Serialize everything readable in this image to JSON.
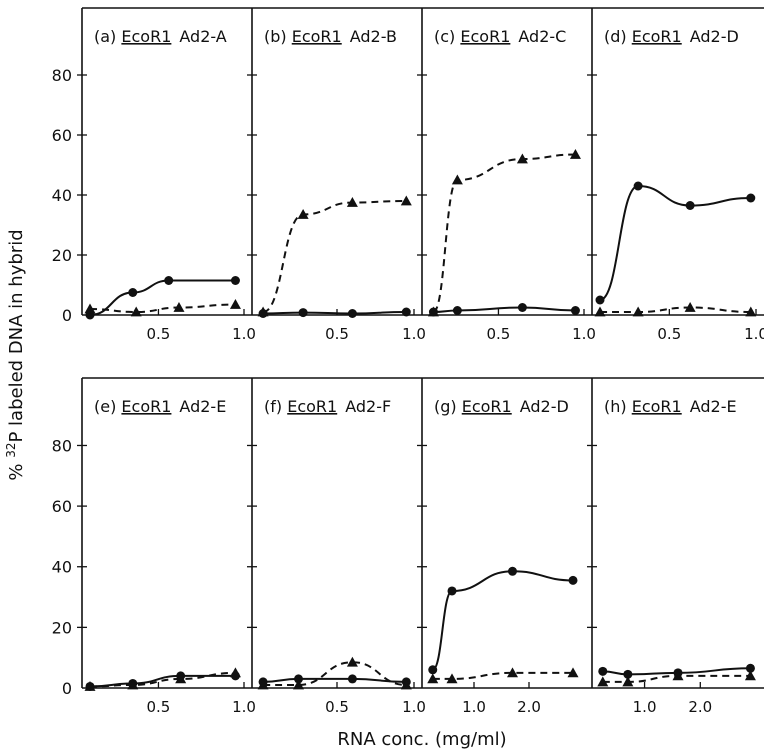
{
  "figure": {
    "ylabel_prefix": "% ",
    "ylabel_sup": "32",
    "ylabel_rest": "P labeled DNA in hybrid",
    "xlabel": "RNA conc. (mg/ml)"
  },
  "chart_data": [
    {
      "type": "line",
      "panel": "a",
      "label_prefix": "(a)",
      "enzyme": "EcoR1",
      "fragment": "Ad2-A",
      "xlim": [
        0.1,
        1.0
      ],
      "ylim": [
        0,
        95
      ],
      "xticks": [
        {
          "v": 0.5,
          "l": "0.5"
        },
        {
          "v": 1.0,
          "l": "1.0"
        }
      ],
      "yticks": [
        {
          "v": 0,
          "l": "0"
        },
        {
          "v": 20,
          "l": "20"
        },
        {
          "v": 40,
          "l": "40"
        },
        {
          "v": 60,
          "l": "60"
        },
        {
          "v": 80,
          "l": "80"
        }
      ],
      "series": [
        {
          "marker": "circle",
          "line": "solid",
          "points": [
            [
              0.1,
              0
            ],
            [
              0.35,
              7.5
            ],
            [
              0.56,
              11.5
            ],
            [
              0.95,
              11.5
            ]
          ]
        },
        {
          "marker": "triangle",
          "line": "dashed",
          "points": [
            [
              0.1,
              2
            ],
            [
              0.37,
              1
            ],
            [
              0.62,
              2.5
            ],
            [
              0.95,
              3.5
            ]
          ]
        }
      ]
    },
    {
      "type": "line",
      "panel": "b",
      "label_prefix": "(b)",
      "enzyme": "EcoR1",
      "fragment": "Ad2-B",
      "xlim": [
        0.0,
        1.0
      ],
      "ylim": [
        0,
        95
      ],
      "xticks": [
        {
          "v": 0.5,
          "l": "0.5"
        },
        {
          "v": 1.0,
          "l": "1.0"
        }
      ],
      "yticks": [],
      "series": [
        {
          "marker": "triangle",
          "line": "dashed",
          "points": [
            [
              0.02,
              1
            ],
            [
              0.28,
              33.5
            ],
            [
              0.6,
              37.5
            ],
            [
              0.95,
              38
            ]
          ]
        },
        {
          "marker": "circle",
          "line": "solid",
          "points": [
            [
              0.02,
              0.5
            ],
            [
              0.28,
              0.8
            ],
            [
              0.6,
              0.5
            ],
            [
              0.95,
              1
            ]
          ]
        }
      ]
    },
    {
      "type": "line",
      "panel": "c",
      "label_prefix": "(c)",
      "enzyme": "EcoR1",
      "fragment": "Ad2-C",
      "xlim": [
        0.1,
        1.0
      ],
      "ylim": [
        0,
        95
      ],
      "xticks": [
        {
          "v": 0.5,
          "l": "0.5"
        },
        {
          "v": 1.0,
          "l": "1.0"
        }
      ],
      "yticks": [],
      "series": [
        {
          "marker": "triangle",
          "line": "dashed",
          "points": [
            [
              0.12,
              1
            ],
            [
              0.26,
              45
            ],
            [
              0.64,
              52
            ],
            [
              0.95,
              53.5
            ]
          ]
        },
        {
          "marker": "circle",
          "line": "solid",
          "points": [
            [
              0.12,
              1
            ],
            [
              0.26,
              1.5
            ],
            [
              0.64,
              2.5
            ],
            [
              0.95,
              1.5
            ]
          ]
        }
      ]
    },
    {
      "type": "line",
      "panel": "d",
      "label_prefix": "(d)",
      "enzyme": "EcoR1",
      "fragment": "Ad2-D",
      "xlim": [
        0.1,
        1.0
      ],
      "ylim": [
        0,
        95
      ],
      "xticks": [
        {
          "v": 0.5,
          "l": "0.5"
        },
        {
          "v": 1.0,
          "l": "1.0"
        }
      ],
      "yticks": [],
      "series": [
        {
          "marker": "circle",
          "line": "solid",
          "points": [
            [
              0.1,
              5
            ],
            [
              0.32,
              43
            ],
            [
              0.62,
              36.5
            ],
            [
              0.97,
              39
            ]
          ]
        },
        {
          "marker": "triangle",
          "line": "dashed",
          "points": [
            [
              0.1,
              1
            ],
            [
              0.32,
              1
            ],
            [
              0.62,
              2.5
            ],
            [
              0.97,
              1
            ]
          ]
        }
      ]
    },
    {
      "type": "line",
      "panel": "e",
      "label_prefix": "(e)",
      "enzyme": "EcoR1",
      "fragment": "Ad2-E",
      "xlim": [
        0.1,
        1.0
      ],
      "ylim": [
        0,
        95
      ],
      "xticks": [
        {
          "v": 0.5,
          "l": "0.5"
        },
        {
          "v": 1.0,
          "l": "1.0"
        }
      ],
      "yticks": [
        {
          "v": 0,
          "l": "0"
        },
        {
          "v": 20,
          "l": "20"
        },
        {
          "v": 40,
          "l": "40"
        },
        {
          "v": 60,
          "l": "60"
        },
        {
          "v": 80,
          "l": "80"
        }
      ],
      "series": [
        {
          "marker": "circle",
          "line": "solid",
          "points": [
            [
              0.1,
              0.5
            ],
            [
              0.35,
              1.5
            ],
            [
              0.63,
              4
            ],
            [
              0.95,
              4
            ]
          ]
        },
        {
          "marker": "triangle",
          "line": "dashed",
          "points": [
            [
              0.1,
              0.5
            ],
            [
              0.35,
              1
            ],
            [
              0.63,
              3
            ],
            [
              0.95,
              5
            ]
          ]
        }
      ]
    },
    {
      "type": "line",
      "panel": "f",
      "label_prefix": "(f)",
      "enzyme": "EcoR1",
      "fragment": "Ad2-F",
      "xlim": [
        0.0,
        1.0
      ],
      "ylim": [
        0,
        95
      ],
      "xticks": [
        {
          "v": 0.5,
          "l": "0.5"
        },
        {
          "v": 1.0,
          "l": "1.0"
        }
      ],
      "yticks": [],
      "series": [
        {
          "marker": "circle",
          "line": "solid",
          "points": [
            [
              0.02,
              2
            ],
            [
              0.25,
              3
            ],
            [
              0.6,
              3
            ],
            [
              0.95,
              2
            ]
          ]
        },
        {
          "marker": "triangle",
          "line": "dashed",
          "points": [
            [
              0.02,
              1
            ],
            [
              0.25,
              1
            ],
            [
              0.6,
              8.5
            ],
            [
              0.95,
              1
            ]
          ]
        }
      ]
    },
    {
      "type": "line",
      "panel": "g",
      "label_prefix": "(g)",
      "enzyme": "EcoR1",
      "fragment": "Ad2-D",
      "xlim": [
        0.2,
        3.0
      ],
      "ylim": [
        0,
        95
      ],
      "xticks": [
        {
          "v": 1.0,
          "l": "1.0"
        },
        {
          "v": 2.0,
          "l": "2.0"
        }
      ],
      "yticks": [],
      "series": [
        {
          "marker": "circle",
          "line": "solid",
          "points": [
            [
              0.25,
              6
            ],
            [
              0.6,
              32
            ],
            [
              1.7,
              38.5
            ],
            [
              2.8,
              35.5
            ]
          ]
        },
        {
          "marker": "triangle",
          "line": "dashed",
          "points": [
            [
              0.25,
              3
            ],
            [
              0.6,
              3
            ],
            [
              1.7,
              5
            ],
            [
              2.8,
              5
            ]
          ]
        }
      ]
    },
    {
      "type": "line",
      "panel": "h",
      "label_prefix": "(h)",
      "enzyme": "EcoR1",
      "fragment": "Ad2-E",
      "xlim": [
        0.2,
        3.0
      ],
      "ylim": [
        0,
        95
      ],
      "xticks": [
        {
          "v": 1.0,
          "l": "1.0"
        },
        {
          "v": 2.0,
          "l": "2.0"
        }
      ],
      "yticks": [],
      "series": [
        {
          "marker": "circle",
          "line": "solid",
          "points": [
            [
              0.25,
              5.5
            ],
            [
              0.7,
              4.5
            ],
            [
              1.6,
              5
            ],
            [
              2.9,
              6.5
            ]
          ]
        },
        {
          "marker": "triangle",
          "line": "dashed",
          "points": [
            [
              0.25,
              2
            ],
            [
              0.7,
              2
            ],
            [
              1.6,
              4
            ],
            [
              2.9,
              4
            ]
          ]
        }
      ]
    }
  ]
}
